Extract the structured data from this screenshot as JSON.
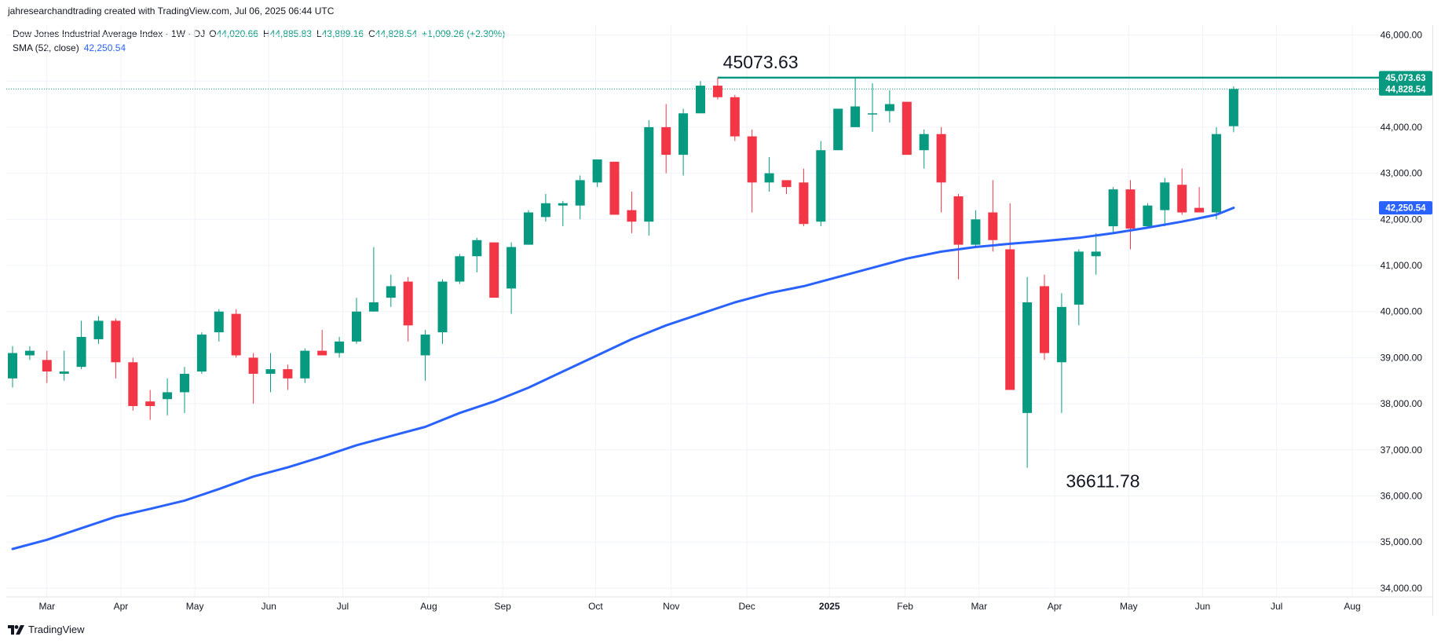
{
  "credit": "jahresearchandtrading created with TradingView.com, Jul 06, 2025 06:44 UTC",
  "legend": {
    "symbol": "Dow Jones Industrial Average Index · 1W · DJ",
    "open_label": "O",
    "open": "44,020.66",
    "high_label": "H",
    "high": "44,885.83",
    "low_label": "L",
    "low": "43,889.16",
    "close_label": "C",
    "close": "44,828.54",
    "change": "+1,009.26 (+2.30%)",
    "sma_label": "SMA (52, close)",
    "sma_value": "42,250.54"
  },
  "brand": {
    "label": "TradingView",
    "icon": "tradingview-logo-icon"
  },
  "colors": {
    "up": "#089981",
    "down": "#f23645",
    "sma": "#2962ff",
    "grid": "#f0f3fa",
    "axis_text": "#131722",
    "resistance": "#089981"
  },
  "chart_data": {
    "type": "candlestick",
    "interval": "1W",
    "symbol": "DJ",
    "y_axis": {
      "ticks": [
        "34,000.00",
        "35,000.00",
        "36,000.00",
        "37,000.00",
        "38,000.00",
        "39,000.00",
        "40,000.00",
        "41,000.00",
        "42,000.00",
        "43,000.00",
        "44,000.00",
        "45,000.00",
        "46,000.00"
      ],
      "range": [
        33850,
        46300
      ],
      "position": "right"
    },
    "x_axis": {
      "labels": [
        {
          "t": "Mar",
          "i": 2
        },
        {
          "t": "Apr",
          "i": 6.3
        },
        {
          "t": "May",
          "i": 10.6
        },
        {
          "t": "Jun",
          "i": 14.9
        },
        {
          "t": "Jul",
          "i": 19.2
        },
        {
          "t": "Aug",
          "i": 24.2
        },
        {
          "t": "Sep",
          "i": 28.5
        },
        {
          "t": "Oct",
          "i": 33.9
        },
        {
          "t": "Nov",
          "i": 38.3
        },
        {
          "t": "Dec",
          "i": 42.7
        },
        {
          "t": "2025",
          "i": 47.5,
          "bold": true
        },
        {
          "t": "Feb",
          "i": 51.9
        },
        {
          "t": "Mar",
          "i": 56.2
        },
        {
          "t": "Apr",
          "i": 60.6
        },
        {
          "t": "May",
          "i": 64.9
        },
        {
          "t": "Jun",
          "i": 69.2
        },
        {
          "t": "Jul",
          "i": 73.5
        },
        {
          "t": "Aug",
          "i": 77.9
        }
      ]
    },
    "candles": [
      {
        "o": 38550,
        "h": 39250,
        "l": 38350,
        "c": 39100
      },
      {
        "o": 39050,
        "h": 39250,
        "l": 38950,
        "c": 39150
      },
      {
        "o": 38950,
        "h": 39150,
        "l": 38450,
        "c": 38700
      },
      {
        "o": 38650,
        "h": 39150,
        "l": 38500,
        "c": 38700
      },
      {
        "o": 38800,
        "h": 39800,
        "l": 38750,
        "c": 39450
      },
      {
        "o": 39400,
        "h": 39900,
        "l": 39300,
        "c": 39800
      },
      {
        "o": 39800,
        "h": 39850,
        "l": 38550,
        "c": 38900
      },
      {
        "o": 38900,
        "h": 39000,
        "l": 37850,
        "c": 37950
      },
      {
        "o": 38050,
        "h": 38300,
        "l": 37650,
        "c": 37950
      },
      {
        "o": 38100,
        "h": 38550,
        "l": 37750,
        "c": 38250
      },
      {
        "o": 38250,
        "h": 38800,
        "l": 37800,
        "c": 38650
      },
      {
        "o": 38700,
        "h": 39550,
        "l": 38650,
        "c": 39500
      },
      {
        "o": 39550,
        "h": 40050,
        "l": 39350,
        "c": 40000
      },
      {
        "o": 39950,
        "h": 40050,
        "l": 39000,
        "c": 39050
      },
      {
        "o": 39000,
        "h": 39100,
        "l": 38000,
        "c": 38650
      },
      {
        "o": 38650,
        "h": 39100,
        "l": 38250,
        "c": 38750
      },
      {
        "o": 38750,
        "h": 38850,
        "l": 38300,
        "c": 38550
      },
      {
        "o": 38550,
        "h": 39200,
        "l": 38450,
        "c": 39150
      },
      {
        "o": 39150,
        "h": 39600,
        "l": 39050,
        "c": 39050
      },
      {
        "o": 39100,
        "h": 39450,
        "l": 39000,
        "c": 39350
      },
      {
        "o": 39350,
        "h": 40300,
        "l": 39300,
        "c": 40000
      },
      {
        "o": 40000,
        "h": 41400,
        "l": 40000,
        "c": 40200
      },
      {
        "o": 40300,
        "h": 40800,
        "l": 40100,
        "c": 40550
      },
      {
        "o": 40650,
        "h": 40750,
        "l": 39350,
        "c": 39700
      },
      {
        "o": 39050,
        "h": 39600,
        "l": 38500,
        "c": 39500
      },
      {
        "o": 39550,
        "h": 40700,
        "l": 39300,
        "c": 40650
      },
      {
        "o": 40650,
        "h": 41250,
        "l": 40600,
        "c": 41200
      },
      {
        "o": 41200,
        "h": 41600,
        "l": 40850,
        "c": 41550
      },
      {
        "o": 41500,
        "h": 41500,
        "l": 40350,
        "c": 40300
      },
      {
        "o": 40500,
        "h": 41500,
        "l": 39950,
        "c": 41400
      },
      {
        "o": 41450,
        "h": 42200,
        "l": 41450,
        "c": 42150
      },
      {
        "o": 42050,
        "h": 42550,
        "l": 41950,
        "c": 42350
      },
      {
        "o": 42300,
        "h": 42400,
        "l": 41850,
        "c": 42350
      },
      {
        "o": 42300,
        "h": 42950,
        "l": 42000,
        "c": 42850
      },
      {
        "o": 42800,
        "h": 43300,
        "l": 42700,
        "c": 43300
      },
      {
        "o": 43250,
        "h": 43250,
        "l": 42100,
        "c": 42100
      },
      {
        "o": 42200,
        "h": 42600,
        "l": 41700,
        "c": 41950
      },
      {
        "o": 41950,
        "h": 44150,
        "l": 41650,
        "c": 44000
      },
      {
        "o": 44000,
        "h": 44500,
        "l": 43000,
        "c": 43400
      },
      {
        "o": 43400,
        "h": 44400,
        "l": 42950,
        "c": 44300
      },
      {
        "o": 44300,
        "h": 45000,
        "l": 44300,
        "c": 44900
      },
      {
        "o": 44900,
        "h": 45073.63,
        "l": 44600,
        "c": 44650
      },
      {
        "o": 44650,
        "h": 44700,
        "l": 43700,
        "c": 43800
      },
      {
        "o": 43800,
        "h": 43950,
        "l": 42150,
        "c": 42800
      },
      {
        "o": 42800,
        "h": 43350,
        "l": 42600,
        "c": 43000
      },
      {
        "o": 42850,
        "h": 42850,
        "l": 42550,
        "c": 42700
      },
      {
        "o": 42800,
        "h": 43100,
        "l": 41850,
        "c": 41900
      },
      {
        "o": 41950,
        "h": 43700,
        "l": 41850,
        "c": 43500
      },
      {
        "o": 43500,
        "h": 44400,
        "l": 43500,
        "c": 44400
      },
      {
        "o": 44000,
        "h": 45073.63,
        "l": 44000,
        "c": 44450
      },
      {
        "o": 44300,
        "h": 44950,
        "l": 43900,
        "c": 44300
      },
      {
        "o": 44350,
        "h": 44800,
        "l": 44100,
        "c": 44500
      },
      {
        "o": 44550,
        "h": 44550,
        "l": 43400,
        "c": 43400
      },
      {
        "o": 43500,
        "h": 43950,
        "l": 43100,
        "c": 43850
      },
      {
        "o": 43850,
        "h": 44000,
        "l": 42150,
        "c": 42800
      },
      {
        "o": 42500,
        "h": 42550,
        "l": 40700,
        "c": 41450
      },
      {
        "o": 41450,
        "h": 42200,
        "l": 41400,
        "c": 42000
      },
      {
        "o": 42150,
        "h": 42850,
        "l": 41300,
        "c": 41550
      },
      {
        "o": 41350,
        "h": 42350,
        "l": 38300,
        "c": 38300
      },
      {
        "o": 37800,
        "h": 40750,
        "l": 36611.78,
        "c": 40200
      },
      {
        "o": 40550,
        "h": 40800,
        "l": 38950,
        "c": 39100
      },
      {
        "o": 38900,
        "h": 40400,
        "l": 37800,
        "c": 40100
      },
      {
        "o": 40150,
        "h": 41350,
        "l": 39700,
        "c": 41300
      },
      {
        "o": 41200,
        "h": 41700,
        "l": 40800,
        "c": 41300
      },
      {
        "o": 41850,
        "h": 42700,
        "l": 41700,
        "c": 42650
      },
      {
        "o": 42650,
        "h": 42850,
        "l": 41350,
        "c": 41800
      },
      {
        "o": 41850,
        "h": 42350,
        "l": 41800,
        "c": 42300
      },
      {
        "o": 42200,
        "h": 42900,
        "l": 41850,
        "c": 42800
      },
      {
        "o": 42750,
        "h": 43100,
        "l": 42100,
        "c": 42150
      },
      {
        "o": 42250,
        "h": 42700,
        "l": 42150,
        "c": 42150
      },
      {
        "o": 42150,
        "h": 44000,
        "l": 42000,
        "c": 43850
      },
      {
        "o": 44020.66,
        "h": 44885.83,
        "l": 43889.16,
        "c": 44828.54
      }
    ],
    "sma": {
      "name": "SMA (52, close)",
      "points": [
        {
          "i": 0,
          "v": 34850
        },
        {
          "i": 2,
          "v": 35050
        },
        {
          "i": 4,
          "v": 35300
        },
        {
          "i": 6,
          "v": 35550
        },
        {
          "i": 8,
          "v": 35720
        },
        {
          "i": 10,
          "v": 35900
        },
        {
          "i": 12,
          "v": 36150
        },
        {
          "i": 14,
          "v": 36420
        },
        {
          "i": 16,
          "v": 36620
        },
        {
          "i": 18,
          "v": 36850
        },
        {
          "i": 20,
          "v": 37100
        },
        {
          "i": 22,
          "v": 37300
        },
        {
          "i": 24,
          "v": 37500
        },
        {
          "i": 26,
          "v": 37800
        },
        {
          "i": 28,
          "v": 38050
        },
        {
          "i": 30,
          "v": 38350
        },
        {
          "i": 32,
          "v": 38700
        },
        {
          "i": 34,
          "v": 39050
        },
        {
          "i": 36,
          "v": 39400
        },
        {
          "i": 38,
          "v": 39700
        },
        {
          "i": 40,
          "v": 39950
        },
        {
          "i": 42,
          "v": 40200
        },
        {
          "i": 44,
          "v": 40400
        },
        {
          "i": 46,
          "v": 40550
        },
        {
          "i": 48,
          "v": 40750
        },
        {
          "i": 50,
          "v": 40950
        },
        {
          "i": 52,
          "v": 41150
        },
        {
          "i": 54,
          "v": 41300
        },
        {
          "i": 56,
          "v": 41400
        },
        {
          "i": 58,
          "v": 41470
        },
        {
          "i": 60,
          "v": 41530
        },
        {
          "i": 62,
          "v": 41600
        },
        {
          "i": 64,
          "v": 41700
        },
        {
          "i": 66,
          "v": 41820
        },
        {
          "i": 68,
          "v": 41950
        },
        {
          "i": 70,
          "v": 42100
        },
        {
          "i": 71,
          "v": 42250.54
        }
      ]
    },
    "annotations": [
      {
        "text": "45073.63",
        "value": 45073.63,
        "i": 43.5,
        "pos": "above"
      },
      {
        "text": "36611.78",
        "value": 36611.78,
        "i": 63.4,
        "pos": "below"
      }
    ],
    "resistance": {
      "value": 45073.63,
      "from_i": 41
    },
    "price_labels": [
      {
        "text": "45,073.63",
        "value": 45073.63,
        "kind": "resistance"
      },
      {
        "text": "44,828.54",
        "value": 44828.54,
        "kind": "last"
      },
      {
        "text": "42,250.54",
        "value": 42250.54,
        "kind": "sma"
      }
    ],
    "last_price_line": 44828.54
  }
}
